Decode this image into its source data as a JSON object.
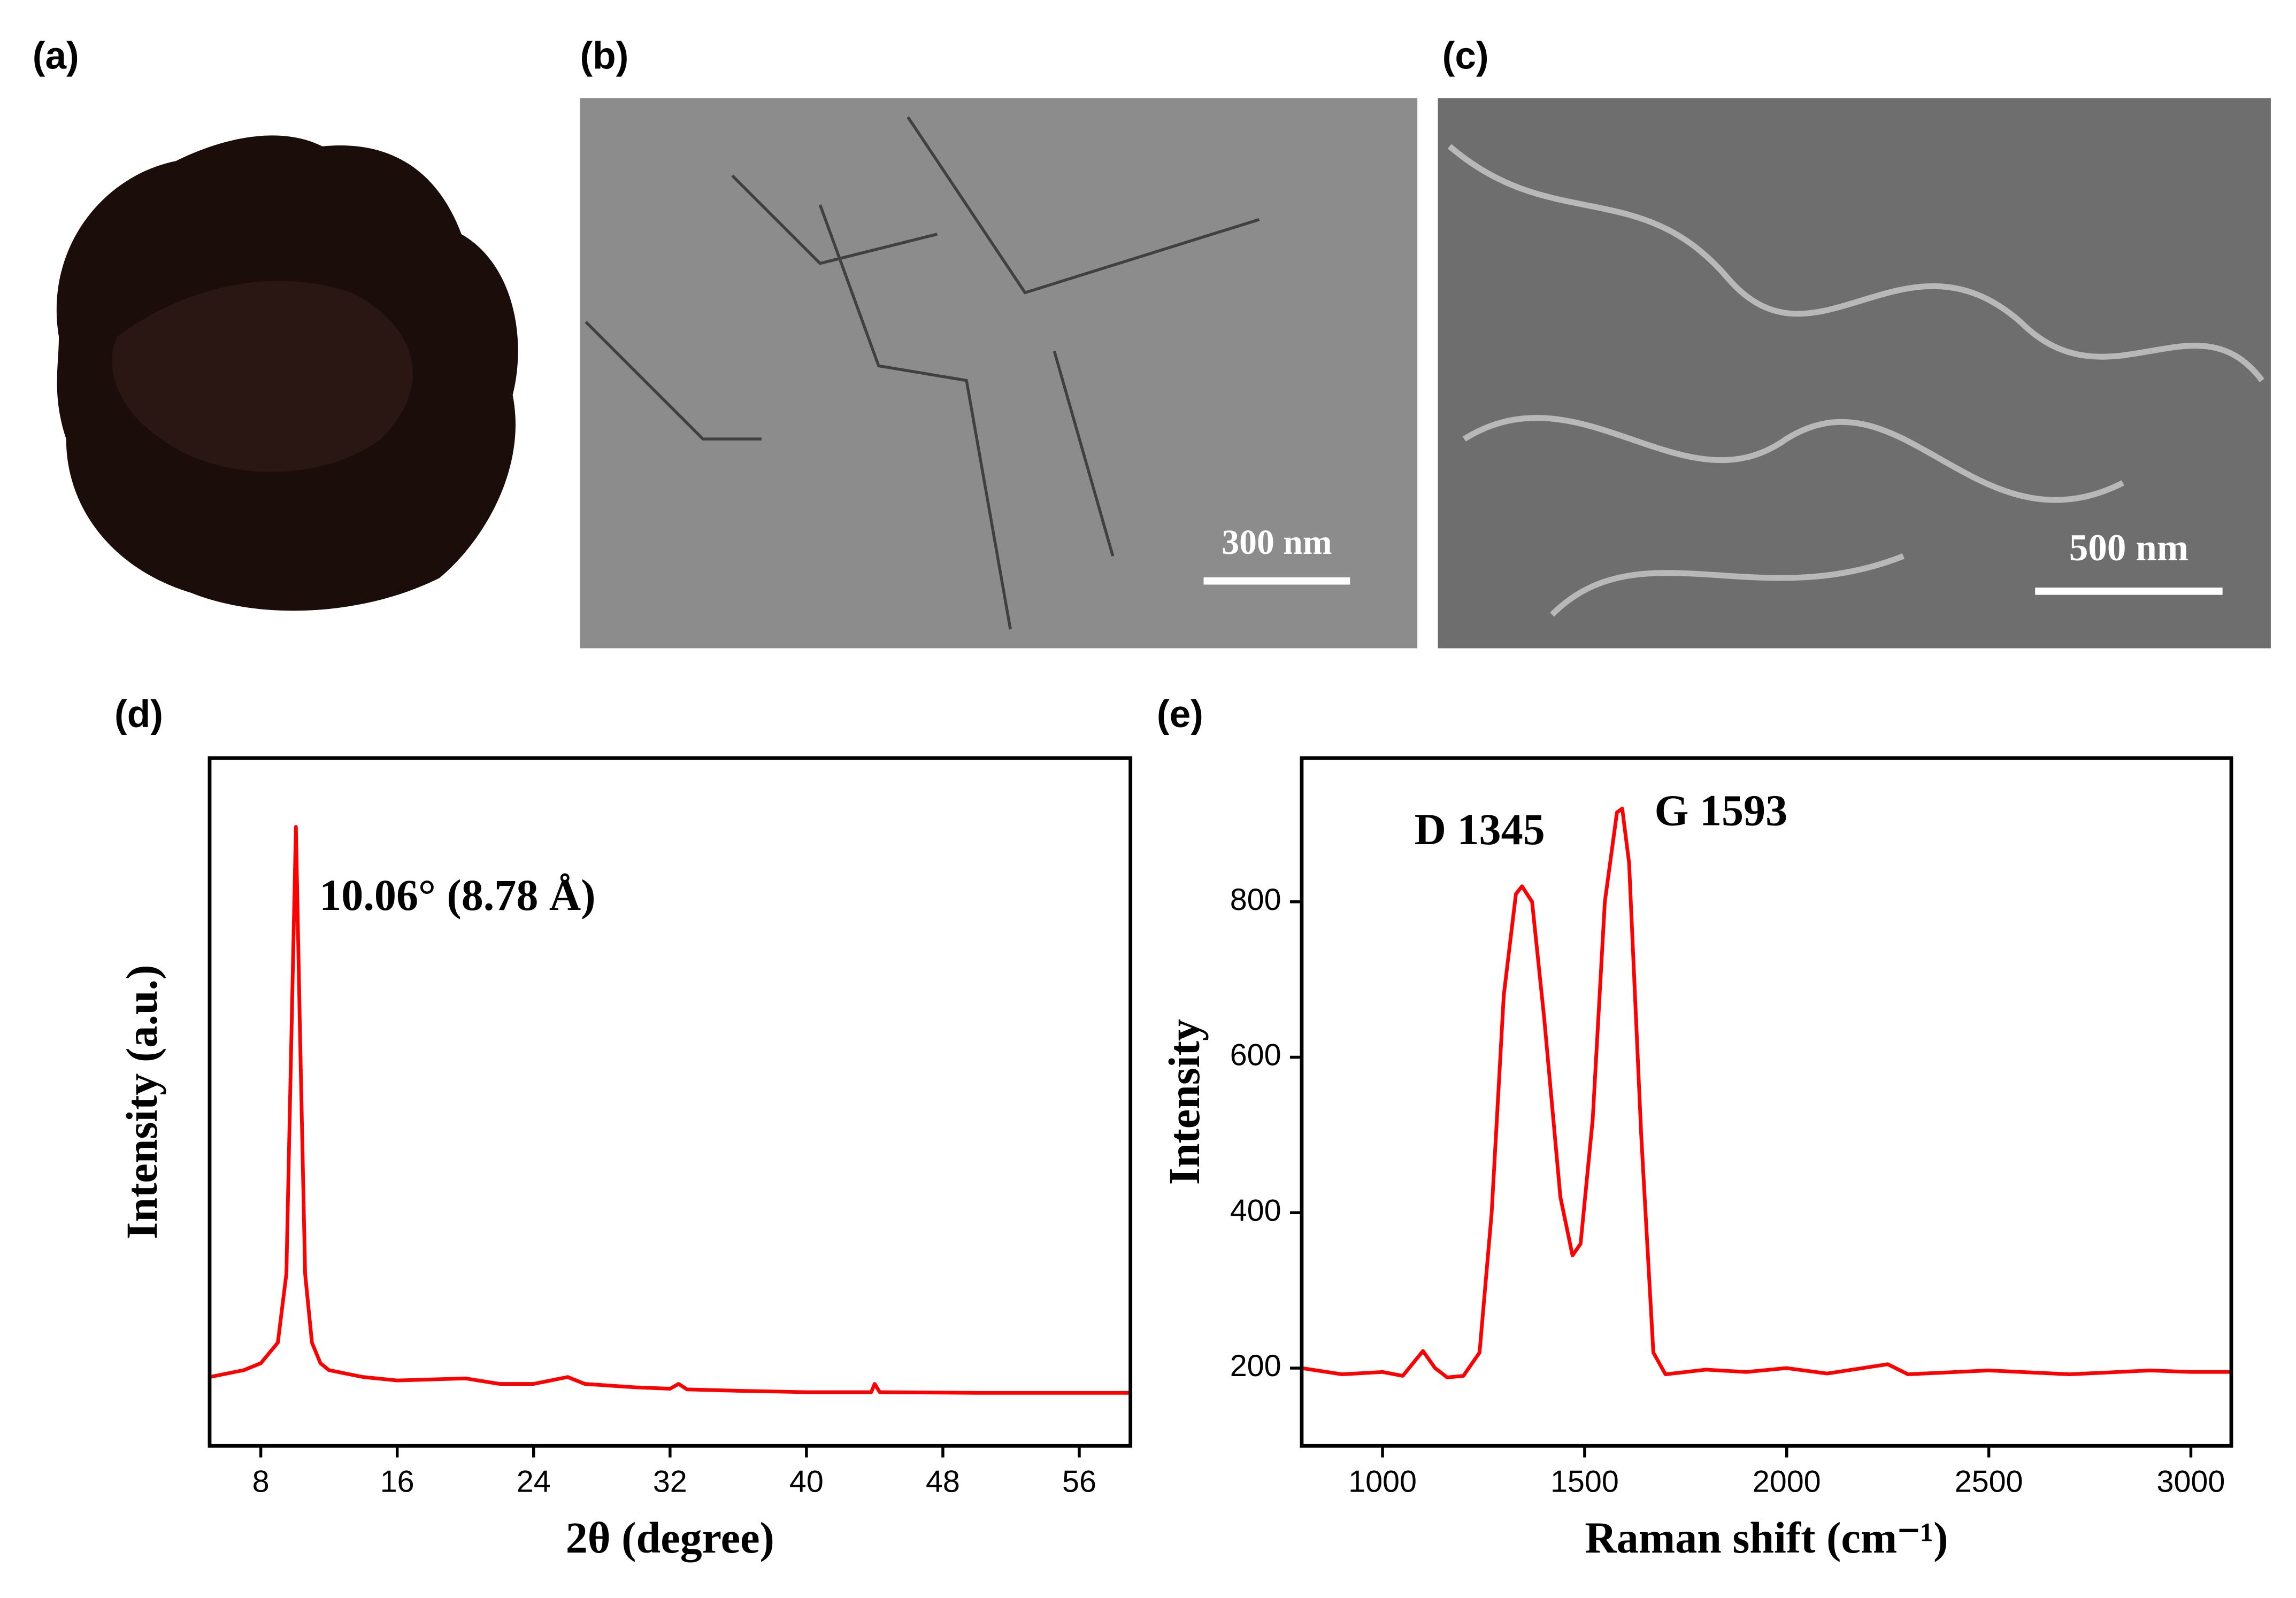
{
  "panel_labels": [
    "(a)",
    "(b)",
    "(c)",
    "(d)",
    "(e)"
  ],
  "images": {
    "b": {
      "scale_bar": "300 nm"
    },
    "c": {
      "scale_bar": "500 nm"
    }
  },
  "chart_data": [
    {
      "type": "line",
      "xlabel": "2θ (degree)",
      "ylabel": "Intensity (a.u.)",
      "color": "#ff0000",
      "annotations": [
        "10.06° (8.78 Å)"
      ],
      "xlim": [
        5,
        59
      ],
      "xticks": [
        8,
        16,
        24,
        32,
        40,
        48,
        56
      ],
      "ylim": [
        0,
        100
      ],
      "yticks": [],
      "x": [
        5,
        7,
        8,
        9,
        9.5,
        9.8,
        10.06,
        10.3,
        10.6,
        11,
        11.5,
        12,
        14,
        16,
        20,
        22,
        24,
        26,
        27,
        30,
        32,
        32.5,
        33,
        36,
        40,
        43.8,
        44,
        44.3,
        50,
        59
      ],
      "values": [
        10,
        11,
        12,
        15,
        25,
        60,
        90,
        60,
        25,
        15,
        12,
        11,
        10,
        9.5,
        9.8,
        9,
        9,
        10,
        9,
        8.5,
        8.3,
        9,
        8.2,
        8,
        7.8,
        7.8,
        9,
        7.8,
        7.7,
        7.7
      ]
    },
    {
      "type": "line",
      "xlabel": "Raman shift (cm⁻¹)",
      "ylabel": "Intensity",
      "color": "#ff0000",
      "annotations": [
        "D 1345",
        "G 1593"
      ],
      "xlim": [
        800,
        3100
      ],
      "xticks": [
        1000,
        1500,
        2000,
        2500,
        3000
      ],
      "ylim": [
        100,
        985
      ],
      "yticks": [
        200,
        400,
        600,
        800
      ],
      "x": [
        800,
        900,
        1000,
        1050,
        1100,
        1130,
        1160,
        1200,
        1240,
        1270,
        1300,
        1330,
        1345,
        1370,
        1400,
        1440,
        1470,
        1490,
        1520,
        1550,
        1580,
        1593,
        1610,
        1640,
        1670,
        1700,
        1800,
        1900,
        2000,
        2100,
        2250,
        2300,
        2500,
        2700,
        2900,
        3000,
        3100
      ],
      "values": [
        200,
        192,
        195,
        190,
        222,
        200,
        188,
        190,
        220,
        400,
        680,
        810,
        820,
        800,
        650,
        420,
        345,
        360,
        520,
        800,
        915,
        920,
        850,
        500,
        220,
        192,
        198,
        195,
        200,
        193,
        205,
        192,
        197,
        192,
        197,
        195,
        195
      ]
    }
  ]
}
